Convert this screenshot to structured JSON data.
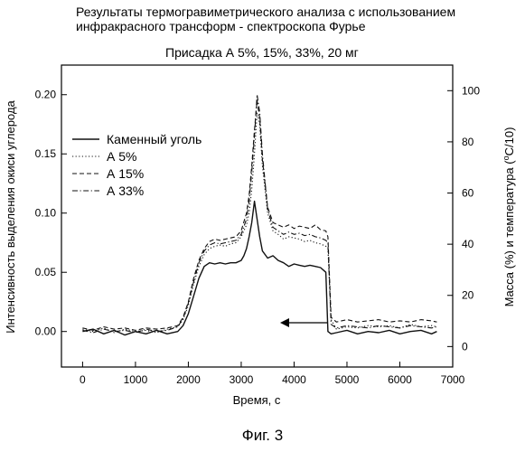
{
  "title_line1": "Результаты термогравиметрического анализа с использованием",
  "title_line2": "инфракрасного трансформ - спектроскопа Фурье",
  "subtitle": "Присадка А 5%, 15%, 33%,  20 мг",
  "figure_caption": "Фиг. 3",
  "chart_data": {
    "type": "line",
    "title": "Результаты термогравиметрического анализа с использованием инфракрасного трансформ - спектроскопа Фурье",
    "subtitle": "Присадка А 5%, 15%, 33%,  20 мг",
    "xlabel": "Время, с",
    "ylabel": "Интенсивность выделения окиси углерода",
    "y2label": "Масса (%) и температура (°С/10)",
    "xlim": [
      -400,
      7000
    ],
    "ylim": [
      -0.03,
      0.225
    ],
    "y2lim": [
      -8,
      110
    ],
    "xticks": [
      "0",
      "1000",
      "2000",
      "3000",
      "4000",
      "5000",
      "6000",
      "7000"
    ],
    "yticks": [
      "0.00",
      "0.05",
      "0.10",
      "0.15",
      "0.20"
    ],
    "y2ticks": [
      "0",
      "20",
      "40",
      "60",
      "80",
      "100"
    ],
    "legend_position": "top-left",
    "annotation": "arrow pointing left toward right axis",
    "series": [
      {
        "name": "Каменный уголь",
        "style": "solid",
        "x": [
          0,
          200,
          400,
          600,
          800,
          1000,
          1200,
          1400,
          1600,
          1800,
          1900,
          2000,
          2100,
          2200,
          2300,
          2400,
          2500,
          2600,
          2700,
          2800,
          2900,
          3000,
          3050,
          3100,
          3150,
          3200,
          3250,
          3300,
          3350,
          3400,
          3500,
          3600,
          3700,
          3800,
          3900,
          4000,
          4100,
          4200,
          4300,
          4400,
          4500,
          4600,
          4640,
          4700,
          4800,
          5000,
          5200,
          5400,
          5600,
          5800,
          6000,
          6200,
          6400,
          6600,
          6700
        ],
        "y": [
          0.0,
          0.002,
          -0.002,
          0.001,
          -0.003,
          0.0,
          -0.002,
          0.001,
          -0.002,
          0.0,
          0.005,
          0.015,
          0.03,
          0.045,
          0.055,
          0.058,
          0.057,
          0.058,
          0.057,
          0.058,
          0.058,
          0.06,
          0.064,
          0.07,
          0.08,
          0.092,
          0.11,
          0.095,
          0.08,
          0.068,
          0.062,
          0.064,
          0.06,
          0.058,
          0.055,
          0.057,
          0.056,
          0.055,
          0.056,
          0.055,
          0.054,
          0.05,
          0.0,
          -0.002,
          -0.001,
          0.001,
          -0.002,
          0.0,
          -0.001,
          0.001,
          -0.002,
          0.0,
          0.001,
          -0.002,
          0.0
        ]
      },
      {
        "name": "А 5%",
        "style": "dotted",
        "x": [
          0,
          200,
          400,
          600,
          800,
          1000,
          1200,
          1400,
          1600,
          1800,
          1900,
          2000,
          2100,
          2200,
          2300,
          2400,
          2500,
          2600,
          2700,
          2800,
          2900,
          3000,
          3100,
          3150,
          3200,
          3250,
          3300,
          3350,
          3400,
          3500,
          3600,
          3700,
          3800,
          3900,
          4000,
          4100,
          4200,
          4300,
          4400,
          4500,
          4600,
          4640,
          4700,
          4800,
          5000,
          5200,
          5400,
          5600,
          5800,
          6000,
          6200,
          6400,
          6600,
          6700
        ],
        "y": [
          0.002,
          0.0,
          0.003,
          -0.001,
          0.002,
          0.0,
          0.001,
          -0.001,
          0.002,
          0.004,
          0.01,
          0.022,
          0.04,
          0.055,
          0.065,
          0.07,
          0.072,
          0.073,
          0.072,
          0.074,
          0.075,
          0.08,
          0.09,
          0.1,
          0.12,
          0.15,
          0.185,
          0.175,
          0.14,
          0.1,
          0.085,
          0.082,
          0.078,
          0.08,
          0.079,
          0.078,
          0.076,
          0.077,
          0.075,
          0.074,
          0.072,
          0.07,
          0.01,
          0.002,
          0.004,
          0.003,
          0.005,
          0.004,
          0.005,
          0.003,
          0.006,
          0.004,
          0.005,
          0.004
        ]
      },
      {
        "name": "А 15%",
        "style": "dashed",
        "x": [
          0,
          200,
          400,
          600,
          800,
          1000,
          1200,
          1400,
          1600,
          1800,
          1900,
          2000,
          2100,
          2200,
          2300,
          2400,
          2500,
          2600,
          2700,
          2800,
          2900,
          3000,
          3100,
          3150,
          3200,
          3250,
          3300,
          3350,
          3400,
          3500,
          3600,
          3700,
          3800,
          3900,
          4000,
          4100,
          4200,
          4300,
          4400,
          4500,
          4600,
          4640,
          4700,
          4800,
          5000,
          5200,
          5400,
          5600,
          5800,
          6000,
          6200,
          6400,
          6600,
          6700
        ],
        "y": [
          0.003,
          0.001,
          0.004,
          0.002,
          0.003,
          0.001,
          0.003,
          0.002,
          0.003,
          0.005,
          0.012,
          0.025,
          0.045,
          0.06,
          0.07,
          0.076,
          0.078,
          0.077,
          0.078,
          0.079,
          0.08,
          0.085,
          0.1,
          0.115,
          0.14,
          0.17,
          0.195,
          0.18,
          0.145,
          0.105,
          0.092,
          0.09,
          0.088,
          0.09,
          0.087,
          0.089,
          0.088,
          0.087,
          0.09,
          0.086,
          0.085,
          0.08,
          0.012,
          0.008,
          0.01,
          0.008,
          0.009,
          0.01,
          0.008,
          0.009,
          0.008,
          0.01,
          0.009,
          0.008
        ]
      },
      {
        "name": "А 33%",
        "style": "dashdot",
        "x": [
          0,
          200,
          400,
          600,
          800,
          1000,
          1200,
          1400,
          1600,
          1800,
          1900,
          2000,
          2100,
          2200,
          2300,
          2400,
          2500,
          2600,
          2700,
          2800,
          2900,
          3000,
          3100,
          3150,
          3200,
          3250,
          3300,
          3350,
          3400,
          3500,
          3600,
          3700,
          3800,
          3900,
          4000,
          4100,
          4200,
          4300,
          4400,
          4500,
          4600,
          4640,
          4700,
          4800,
          5000,
          5200,
          5400,
          5600,
          5800,
          6000,
          6200,
          6400,
          6600,
          6700
        ],
        "y": [
          0.001,
          -0.001,
          0.002,
          0.0,
          0.001,
          -0.001,
          0.002,
          0.0,
          0.001,
          0.004,
          0.011,
          0.024,
          0.042,
          0.058,
          0.068,
          0.073,
          0.075,
          0.074,
          0.075,
          0.076,
          0.077,
          0.082,
          0.095,
          0.11,
          0.135,
          0.165,
          0.2,
          0.185,
          0.15,
          0.103,
          0.088,
          0.085,
          0.082,
          0.084,
          0.082,
          0.083,
          0.081,
          0.082,
          0.08,
          0.079,
          0.077,
          0.075,
          0.006,
          0.003,
          0.005,
          0.004,
          0.003,
          0.005,
          0.004,
          0.003,
          0.005,
          0.004,
          0.003,
          0.004
        ]
      }
    ]
  }
}
